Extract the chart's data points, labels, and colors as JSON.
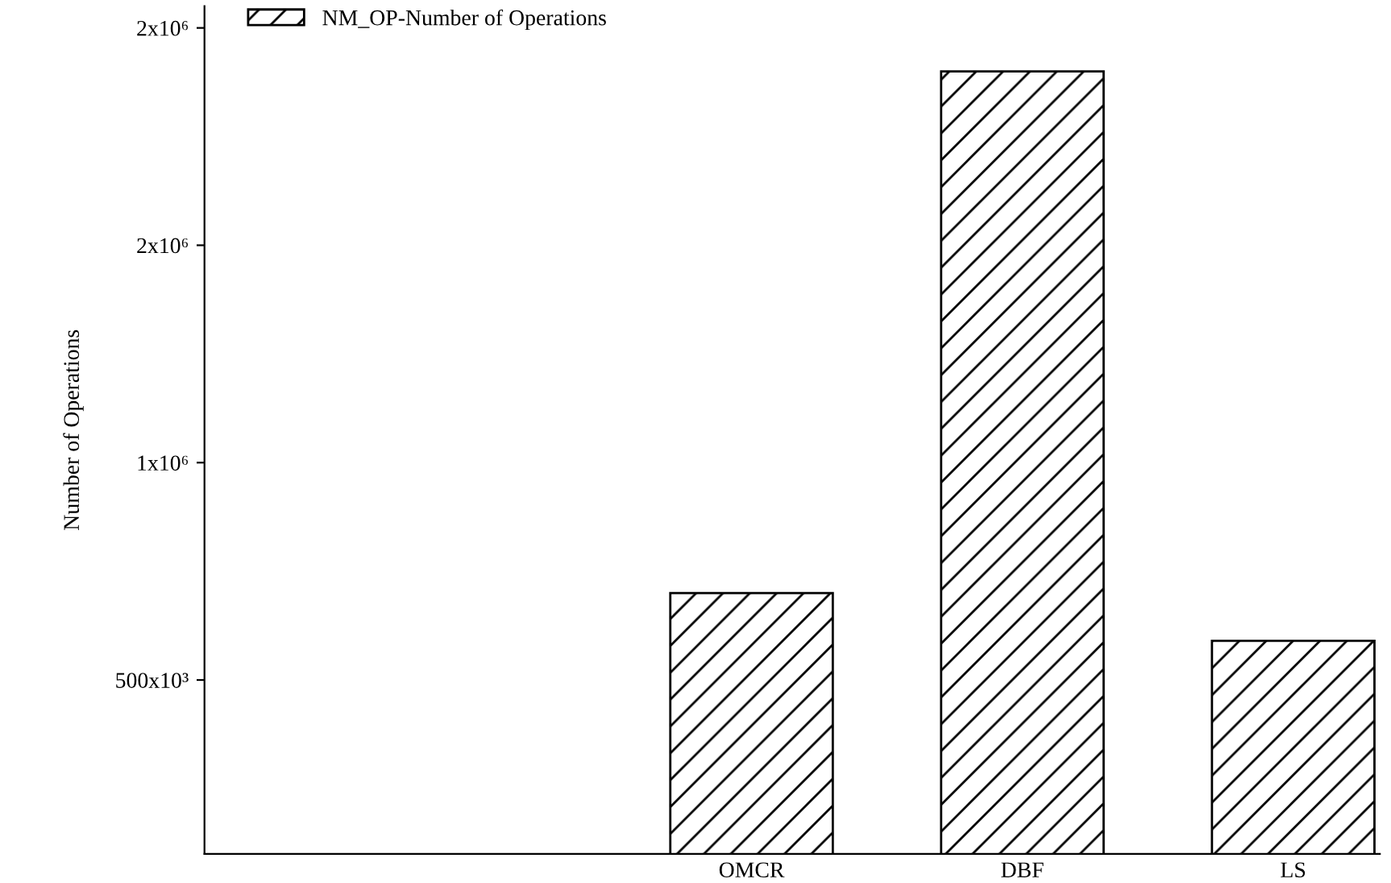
{
  "chart_data": {
    "type": "bar",
    "ylabel": "Number of Operations",
    "categories": [
      null,
      "OMCR",
      "DBF",
      "LS"
    ],
    "series": [
      {
        "name": "NM_OP-Number of Operations",
        "color": "#000000",
        "values": [
          null,
          700000,
          1900000,
          590000
        ]
      }
    ],
    "ylim": [
      100000,
      2050000
    ],
    "yticks": [
      {
        "value": 500000,
        "label": "500x10³"
      },
      {
        "value": 1000000,
        "label": "1x10⁶"
      },
      {
        "value": 1500000,
        "label": "2x10⁶"
      },
      {
        "value": 2000000,
        "label": "2x10⁶"
      }
    ],
    "grid": false,
    "legend": "top left"
  }
}
